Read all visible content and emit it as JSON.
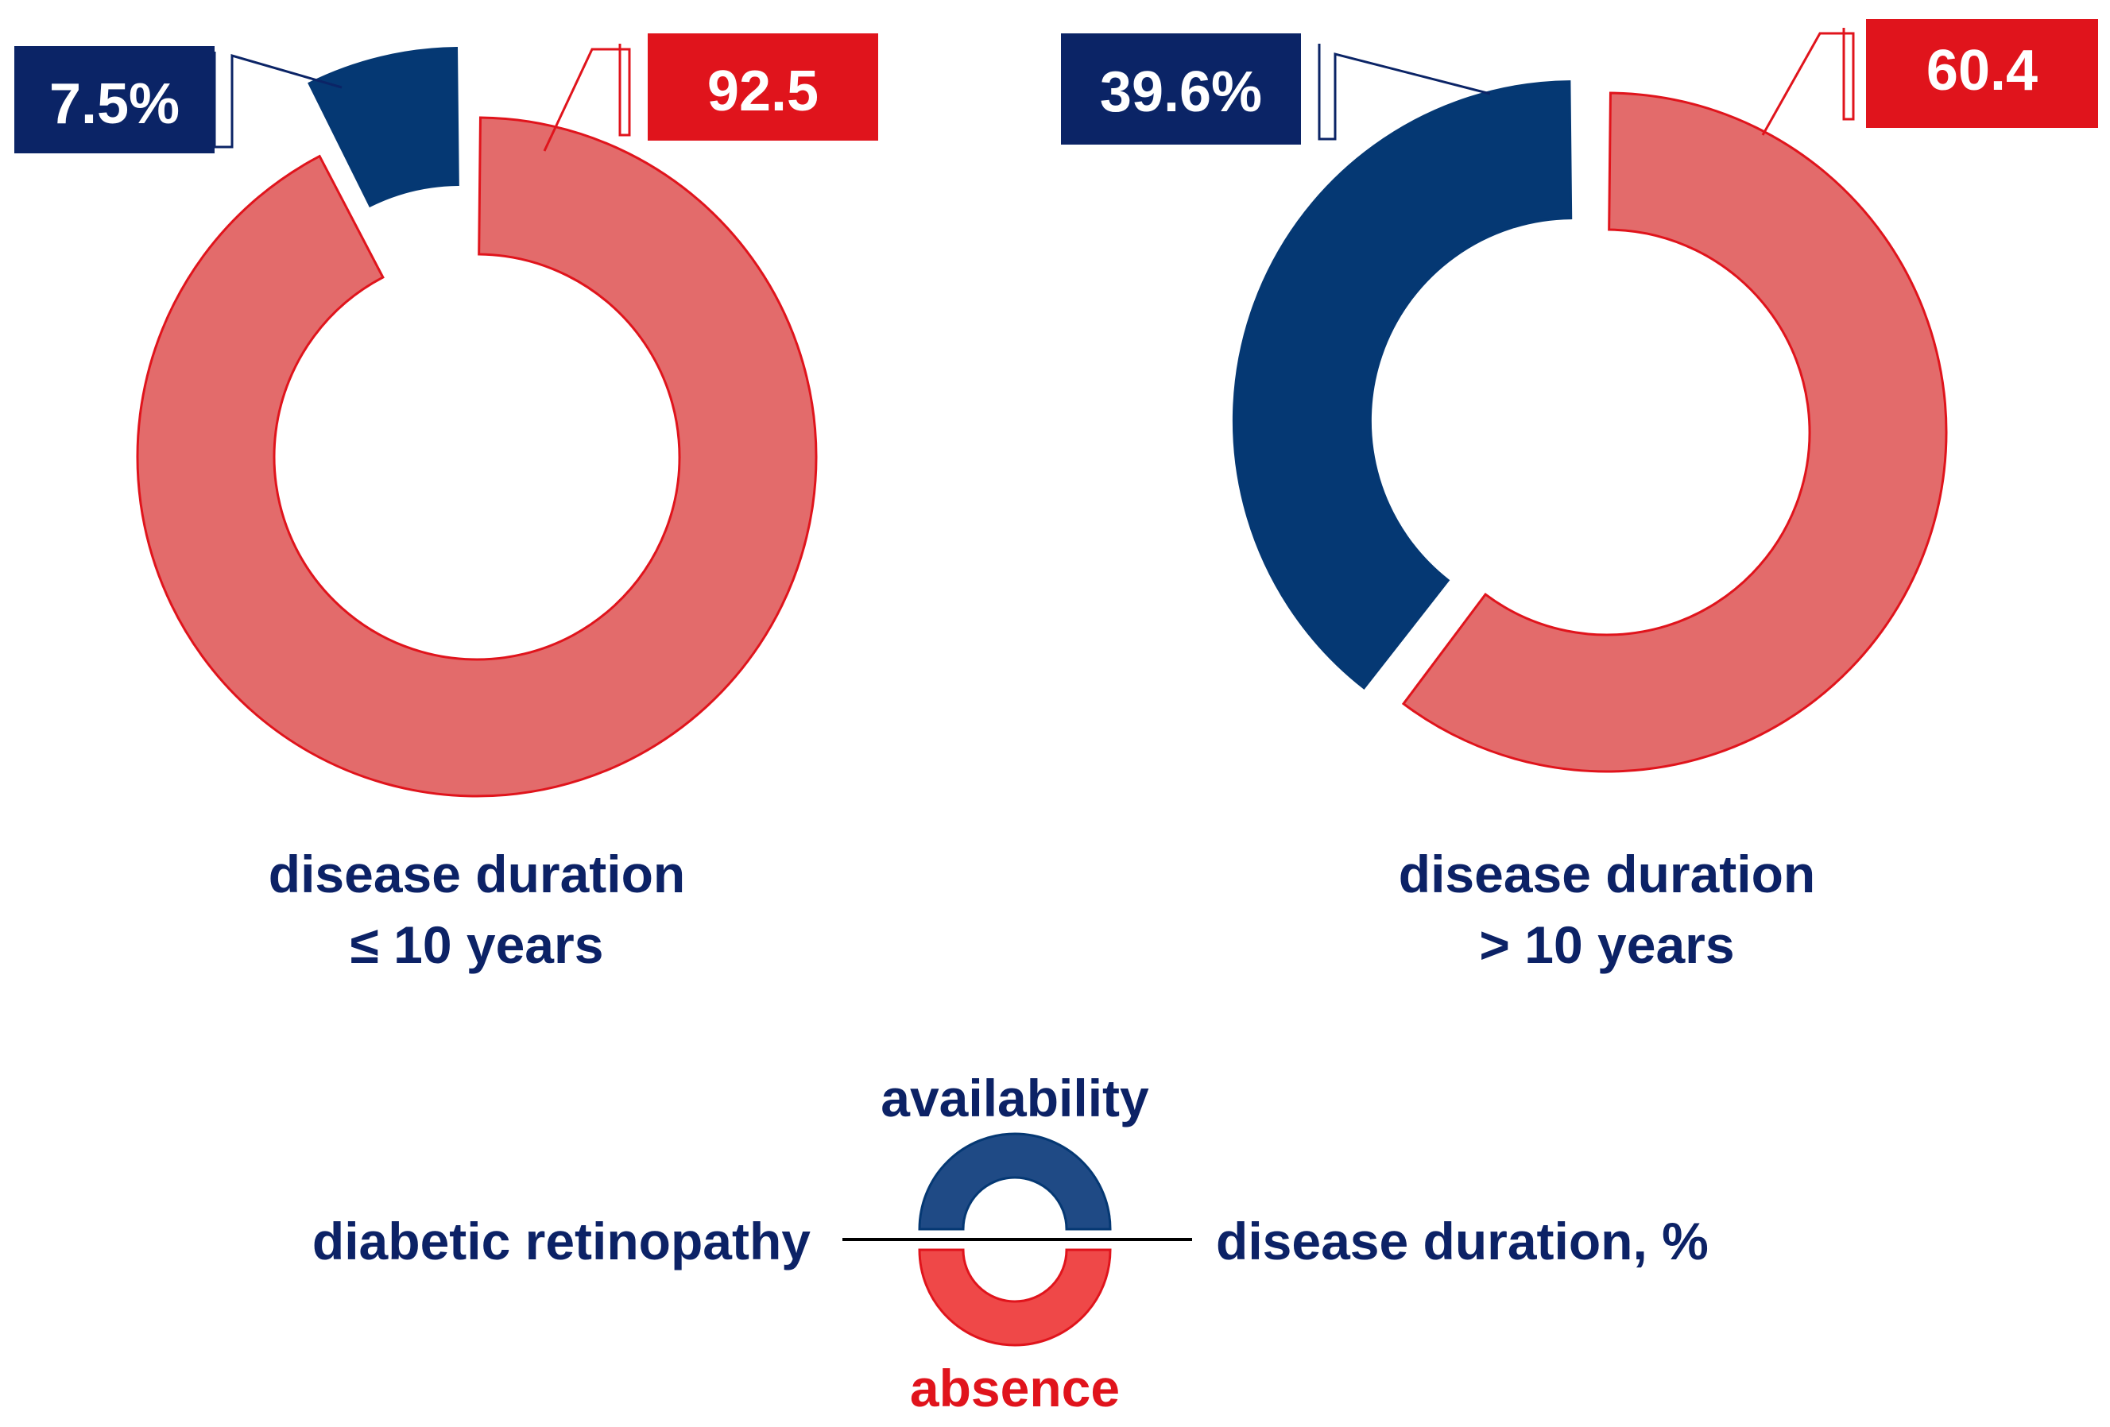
{
  "colors": {
    "availability": "#053873",
    "availability_label": "#0b2466",
    "absence": "#e36b6b",
    "absence_edge": "#e0141c",
    "absence_label_box": "#e0141c",
    "legend_availability": "#1f4a85",
    "legend_absence": "#ef4848",
    "text": "#0c2266",
    "absence_text": "#e0141c"
  },
  "chart_data": [
    {
      "type": "pie",
      "style": "donut",
      "title_line1": "disease duration",
      "title_line2": "≤ 10 years",
      "series": [
        {
          "name": "availability",
          "value": 7.5,
          "label": "7.5%"
        },
        {
          "name": "absence",
          "value": 92.5,
          "label": "92.5"
        }
      ]
    },
    {
      "type": "pie",
      "style": "donut",
      "title_line1": "disease duration",
      "title_line2": "> 10 years",
      "series": [
        {
          "name": "availability",
          "value": 39.6,
          "label": "39.6%"
        },
        {
          "name": "absence",
          "value": 60.4,
          "label": "60.4"
        }
      ]
    }
  ],
  "legend": {
    "top": "availability",
    "bottom": "absence",
    "left": "diabetic retinopathy",
    "right": "disease duration, %"
  }
}
